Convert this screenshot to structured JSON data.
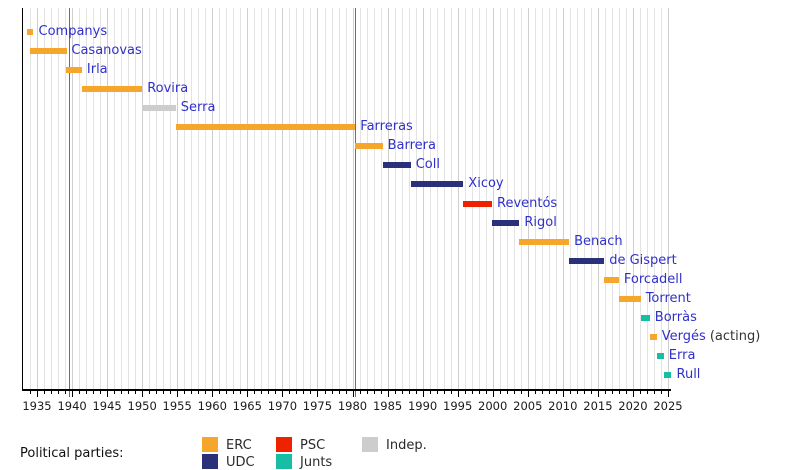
{
  "chart_data": {
    "type": "bar",
    "variant": "horizontal-timeline-gantt",
    "title": "",
    "x_axis": {
      "min": 1932.9,
      "max": 2025.6,
      "major_ticks": [
        1935,
        1940,
        1945,
        1950,
        1955,
        1960,
        1965,
        1970,
        1975,
        1980,
        1985,
        1990,
        1995,
        2000,
        2005,
        2010,
        2015,
        2020,
        2025
      ],
      "minor_tick_step": 1,
      "grid": true
    },
    "reference_lines": [
      1939.6,
      1980.4
    ],
    "parties": {
      "ERC": "#F5A62B",
      "UDC": "#2B3178",
      "PSC": "#EF2200",
      "Junts": "#17BDA5",
      "Indep": "#CDCDCD"
    },
    "rows": [
      {
        "label": "Companys",
        "party": "ERC",
        "start": 1933.6,
        "end": 1934.5
      },
      {
        "label": "Casanovas",
        "party": "ERC",
        "start": 1934.0,
        "end": 1939.2
      },
      {
        "label": "Irla",
        "party": "ERC",
        "start": 1939.2,
        "end": 1941.4
      },
      {
        "label": "Rovira",
        "party": "ERC",
        "start": 1941.4,
        "end": 1950.0
      },
      {
        "label": "Serra",
        "party": "Indep",
        "start": 1950.0,
        "end": 1954.8
      },
      {
        "label": "Farreras",
        "party": "ERC",
        "start": 1954.8,
        "end": 1980.4
      },
      {
        "label": "Barrera",
        "party": "ERC",
        "start": 1980.4,
        "end": 1984.3
      },
      {
        "label": "Coll",
        "party": "UDC",
        "start": 1984.3,
        "end": 1988.3
      },
      {
        "label": "Xicoy",
        "party": "UDC",
        "start": 1988.4,
        "end": 1995.8
      },
      {
        "label": "Reventós",
        "party": "PSC",
        "start": 1995.8,
        "end": 1999.9
      },
      {
        "label": "Rigol",
        "party": "UDC",
        "start": 1999.9,
        "end": 2003.8
      },
      {
        "label": "Benach",
        "party": "ERC",
        "start": 2003.8,
        "end": 2010.9
      },
      {
        "label": "de Gispert",
        "party": "UDC",
        "start": 2010.9,
        "end": 2015.9
      },
      {
        "label": "Forcadell",
        "party": "ERC",
        "start": 2015.9,
        "end": 2018.0
      },
      {
        "label": "Torrent",
        "party": "ERC",
        "start": 2018.0,
        "end": 2021.1
      },
      {
        "label": "Borràs",
        "party": "Junts",
        "start": 2021.1,
        "end": 2022.4
      },
      {
        "label": "Vergés",
        "suffix": "(acting)",
        "party": "ERC",
        "start": 2022.4,
        "end": 2023.4
      },
      {
        "label": "Erra",
        "party": "Junts",
        "start": 2023.4,
        "end": 2024.4
      },
      {
        "label": "Rull",
        "party": "Junts",
        "start": 2024.4,
        "end": 2025.5
      }
    ]
  },
  "legend": {
    "heading": "Political parties:",
    "items": [
      {
        "label": "ERC",
        "party": "ERC"
      },
      {
        "label": "UDC",
        "party": "UDC"
      },
      {
        "label": "PSC",
        "party": "PSC"
      },
      {
        "label": "Junts",
        "party": "Junts"
      },
      {
        "label": "Indep.",
        "party": "Indep"
      }
    ]
  },
  "colors": {
    "label_text": "#3030CB",
    "suffix_text": "#333333",
    "axis": "#000000",
    "tick_text": "#1A1A1A",
    "grid_major": "#CFCFCF",
    "grid_minor": "#E3E3E3",
    "reference_line": "#B34A72",
    "background": "#FFFFFF"
  }
}
